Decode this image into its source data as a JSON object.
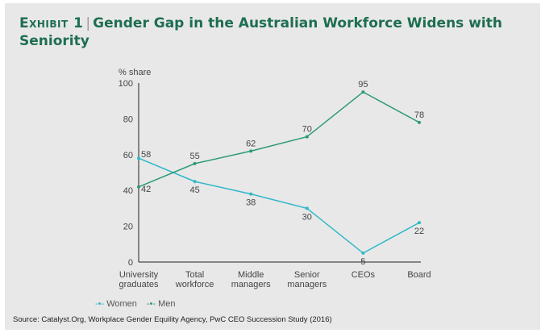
{
  "title": {
    "exhibit": "Exhibit 1",
    "text": "Gender Gap in the Australian Workforce Widens with Seniority"
  },
  "source": "Source: Catalyst.Org, Workplace Gender Equility Agency, PwC CEO Succession Study (2016)",
  "chart_data": {
    "type": "line",
    "ylabel": "% share",
    "ylim": [
      0,
      100
    ],
    "yticks": [
      0,
      20,
      40,
      60,
      80,
      100
    ],
    "categories": [
      [
        "University",
        "graduates"
      ],
      [
        "Total",
        "workforce"
      ],
      [
        "Middle",
        "managers"
      ],
      [
        "Senior",
        "managers"
      ],
      [
        "CEOs"
      ],
      [
        "Board"
      ]
    ],
    "series": [
      {
        "name": "Women",
        "color": "#2fb8c8",
        "values": [
          58,
          45,
          38,
          30,
          5,
          22
        ]
      },
      {
        "name": "Men",
        "color": "#2e9a78",
        "values": [
          42,
          55,
          62,
          70,
          95,
          78
        ]
      }
    ],
    "legend": "bottom-left",
    "grid": false
  }
}
